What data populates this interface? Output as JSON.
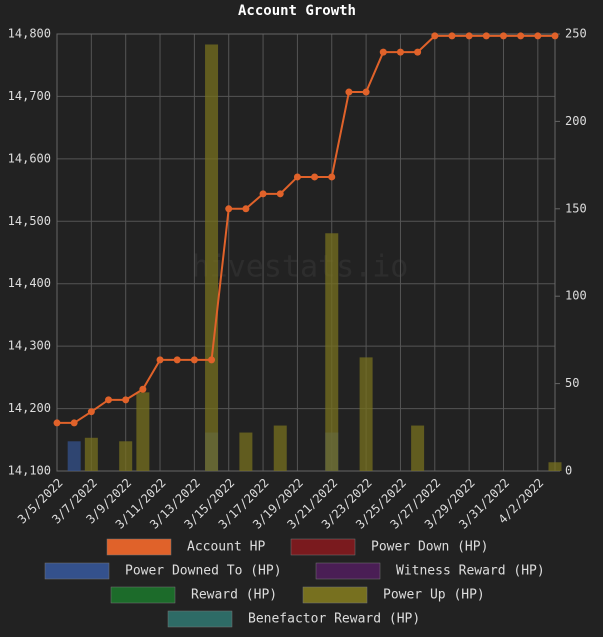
{
  "chart_data": {
    "type": "combo",
    "title": "Account Growth",
    "watermark": "hivestats.io",
    "categories": [
      "3/5/2022",
      null,
      "3/7/2022",
      null,
      "3/9/2022",
      null,
      "3/11/2022",
      null,
      "3/13/2022",
      null,
      "3/15/2022",
      null,
      "3/17/2022",
      null,
      "3/19/2022",
      null,
      "3/21/2022",
      null,
      "3/23/2022",
      null,
      "3/25/2022",
      null,
      "3/27/2022",
      null,
      "3/29/2022",
      null,
      "3/31/2022",
      null,
      "4/2/2022",
      null
    ],
    "ylim": [
      14100,
      14800
    ],
    "yticks": [
      {
        "value": 14100,
        "label": "14,100"
      },
      {
        "value": 14200,
        "label": "14,200"
      },
      {
        "value": 14300,
        "label": "14,300"
      },
      {
        "value": 14400,
        "label": "14,400"
      },
      {
        "value": 14500,
        "label": "14,500"
      },
      {
        "value": 14600,
        "label": "14,600"
      },
      {
        "value": 14700,
        "label": "14,700"
      },
      {
        "value": 14800,
        "label": "14,800"
      }
    ],
    "y2lim": [
      0,
      250
    ],
    "y2ticks": [
      0,
      50,
      100,
      150,
      200,
      250
    ],
    "grid": true,
    "series": [
      {
        "name": "Account HP",
        "type": "line",
        "axis": "y",
        "color": "#e0622a",
        "values": [
          14177,
          14177,
          14195,
          14214,
          14214,
          14231,
          14278,
          14278,
          14278,
          14278,
          14520,
          14520,
          14544,
          14544,
          14571,
          14571,
          14571,
          14707,
          14707,
          14771,
          14771,
          14771,
          14797,
          14797,
          14797,
          14797,
          14797,
          14797,
          14797,
          14797
        ]
      },
      {
        "name": "Power Down (HP)",
        "color": "#7a1a1e"
      },
      {
        "name": "Power Downed To (HP)",
        "type": "bar",
        "axis": "y2",
        "color": "#34518c",
        "values": [
          null,
          17,
          null,
          null,
          null,
          null,
          null,
          null,
          null,
          22,
          null,
          null,
          null,
          null,
          null,
          null,
          22,
          null,
          null,
          null,
          null,
          null,
          null,
          null,
          null,
          null,
          null,
          null,
          null,
          null
        ]
      },
      {
        "name": "Witness Reward (HP)",
        "color": "#4a1e55"
      },
      {
        "name": "Reward (HP)",
        "color": "#1c6b2a"
      },
      {
        "name": "Power Up (HP)",
        "type": "bar",
        "axis": "y2",
        "color": "#77701f",
        "values": [
          null,
          null,
          19,
          null,
          17,
          45,
          null,
          null,
          null,
          244,
          null,
          22,
          null,
          26,
          null,
          null,
          136,
          null,
          65,
          null,
          null,
          26,
          null,
          null,
          null,
          null,
          null,
          null,
          null,
          5
        ]
      },
      {
        "name": "Benefactor Reward (HP)",
        "color": "#2e6b66"
      }
    ]
  }
}
